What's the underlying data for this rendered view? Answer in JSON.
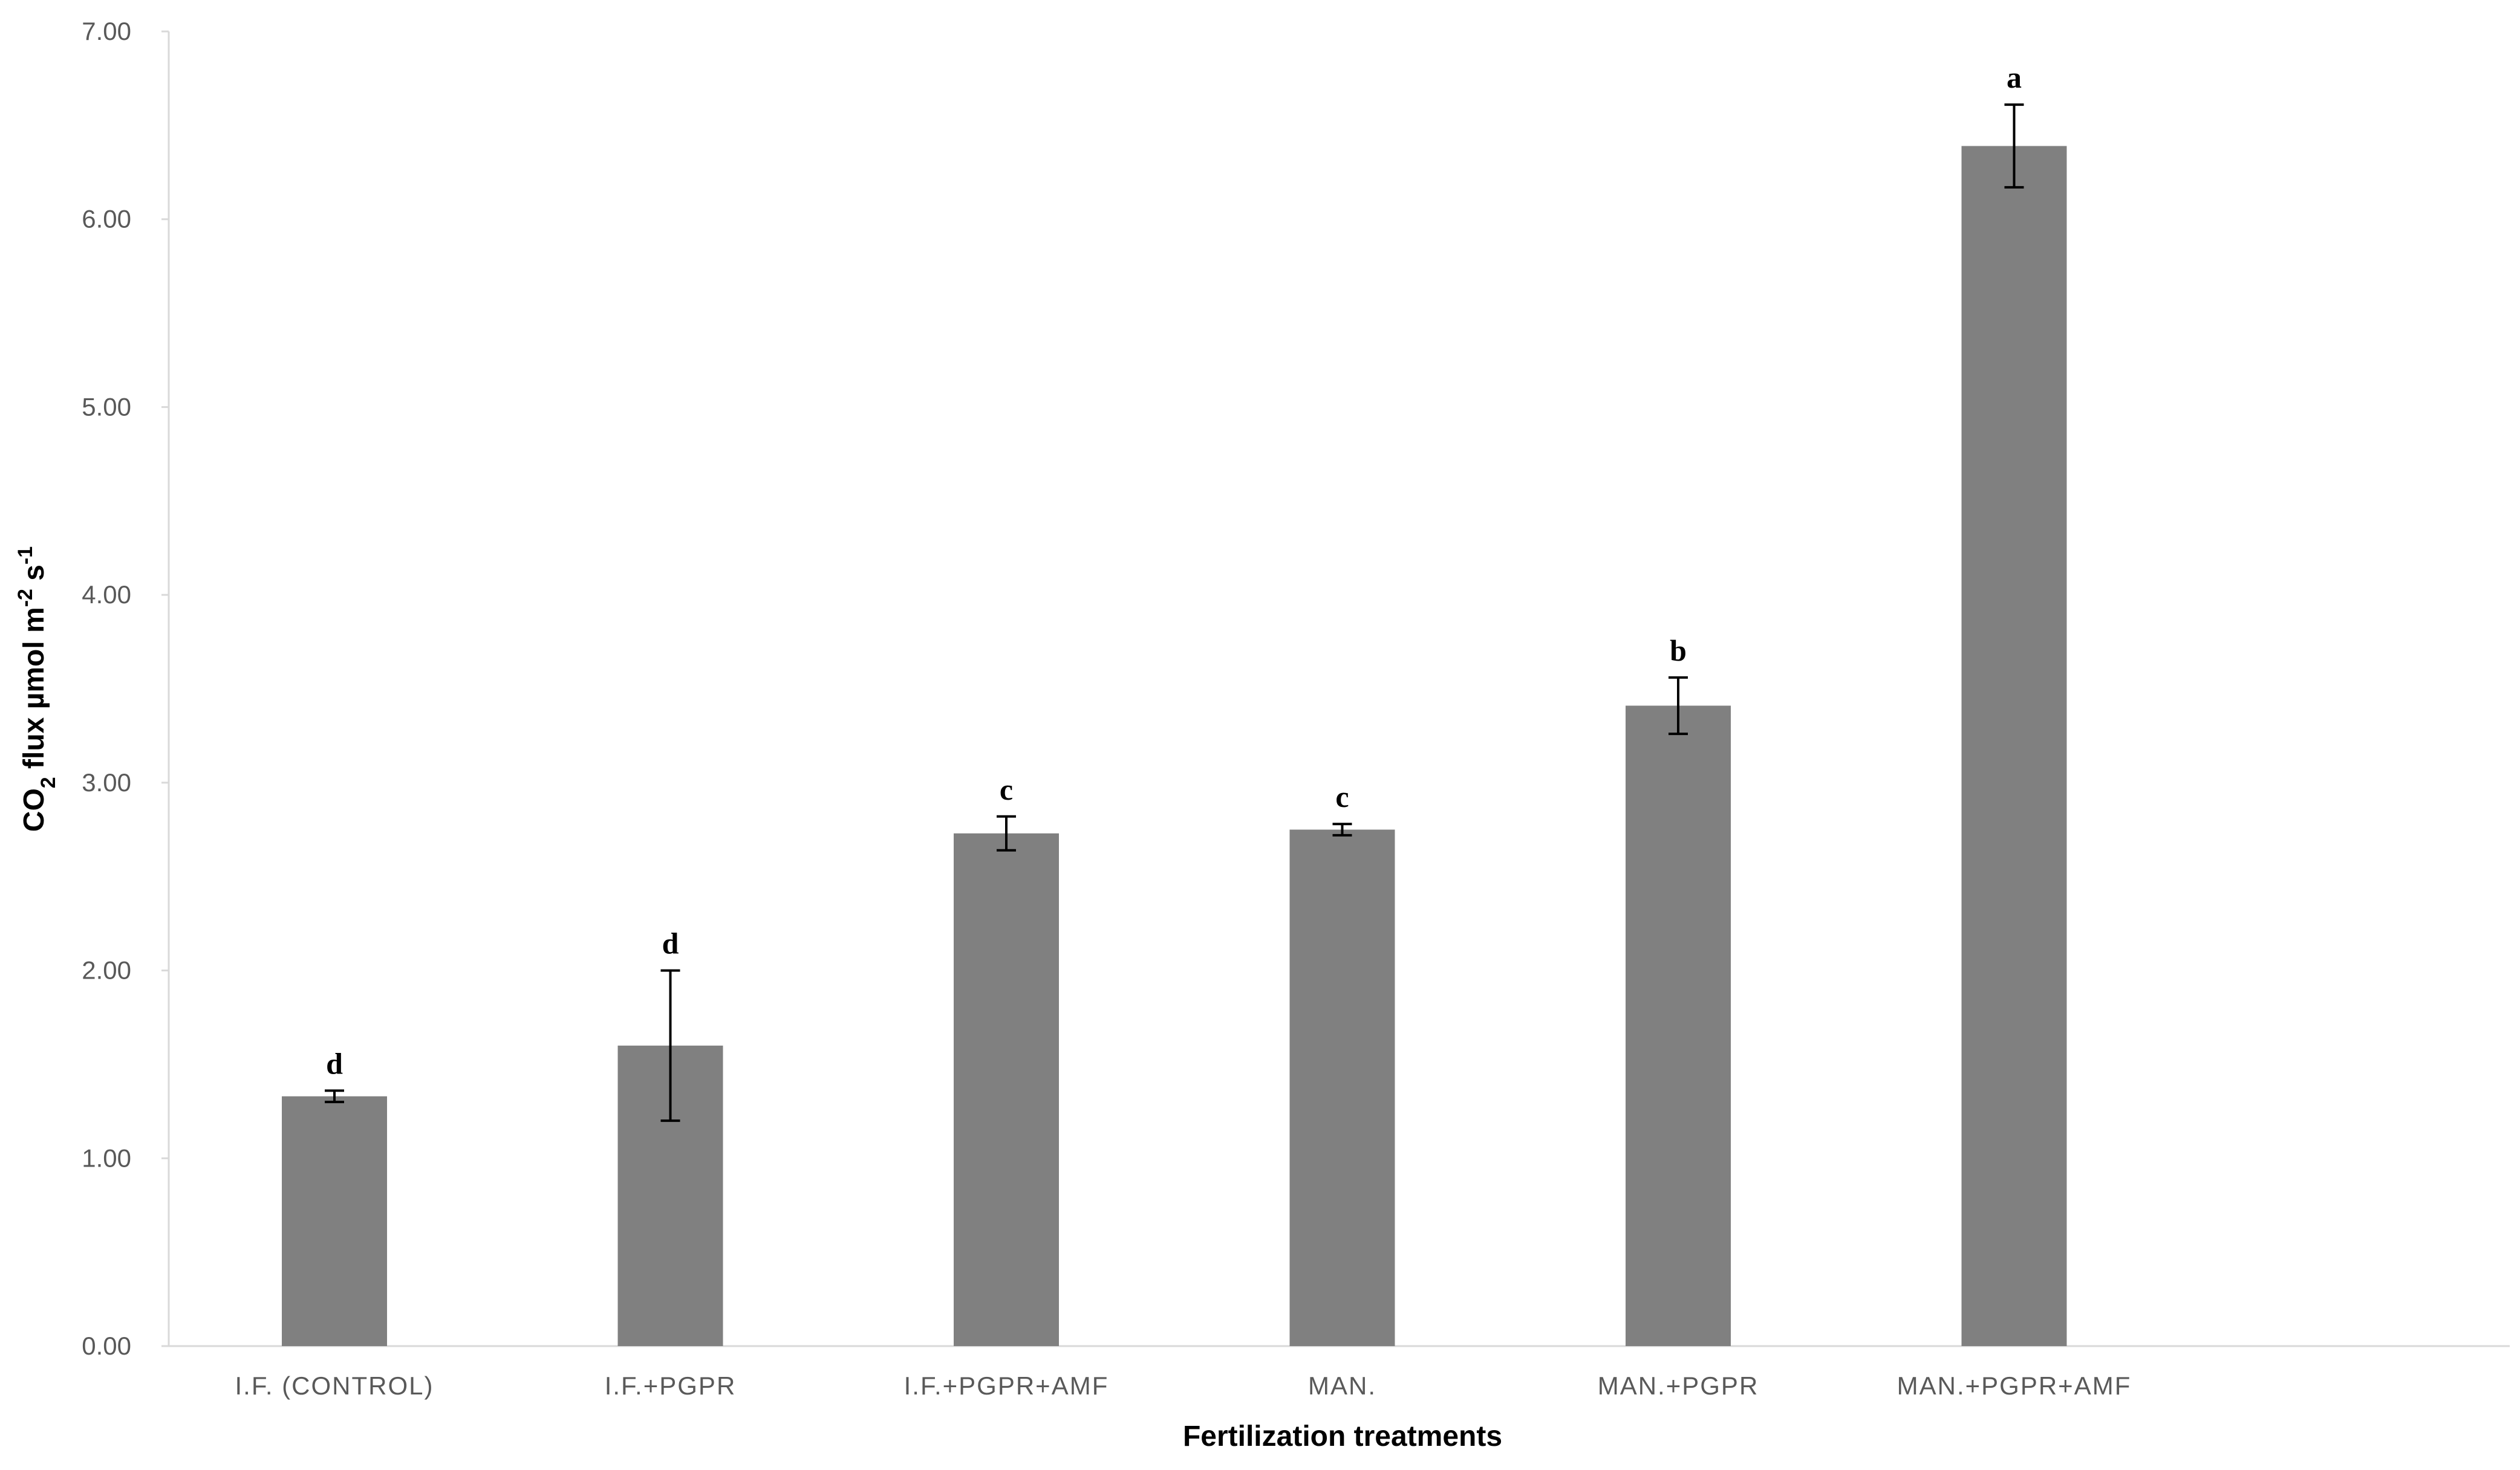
{
  "chart_data": {
    "type": "bar",
    "categories": [
      "I.F. (CONTROL)",
      "I.F.+PGPR",
      "I.F.+PGPR+AMF",
      "MAN.",
      "MAN.+PGPR",
      "MAN.+PGPR+AMF"
    ],
    "series": [
      {
        "values": [
          1.33,
          1.6,
          2.73,
          2.75,
          3.41,
          6.39
        ],
        "errors": [
          0.03,
          0.4,
          0.09,
          0.03,
          0.15,
          0.22
        ],
        "significance": [
          "d",
          "d",
          "c",
          "c",
          "b",
          "a"
        ]
      }
    ],
    "bar_color": "#808080",
    "xlabel": "Fertilization treatments",
    "ylabel": {
      "parts": [
        {
          "text": "CO",
          "shift": "none"
        },
        {
          "text": "2",
          "shift": "sub"
        },
        {
          "text": " flux µmol m",
          "shift": "none"
        },
        {
          "text": "-2",
          "shift": "super"
        },
        {
          "text": " s",
          "shift": "none"
        },
        {
          "text": "-1",
          "shift": "super"
        }
      ]
    },
    "ylim": [
      0,
      7
    ],
    "yticks": [
      "0.00",
      "1.00",
      "2.00",
      "3.00",
      "4.00",
      "5.00",
      "6.00",
      "7.00"
    ],
    "grid": false,
    "legend": "none"
  }
}
